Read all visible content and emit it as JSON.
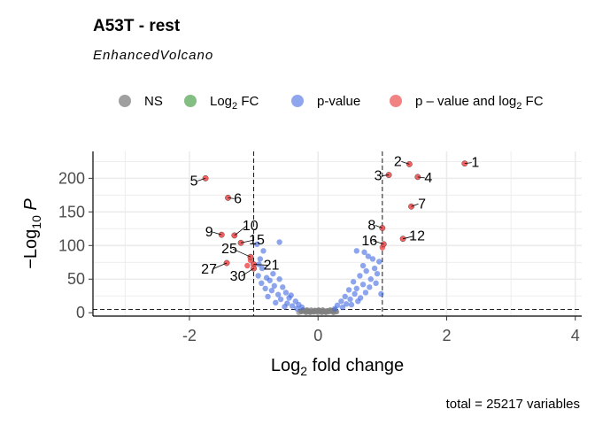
{
  "chart_data": {
    "type": "scatter",
    "title": "A53T - rest",
    "subtitle": "EnhancedVolcano",
    "xlabel": "Log2 fold change",
    "ylabel": "−Log10 P",
    "caption": "total = 25217 variables",
    "xlim": [
      -3.5,
      4.1
    ],
    "ylim": [
      -5,
      240
    ],
    "x_ticks": [
      -2,
      0,
      2,
      4
    ],
    "x_tick_labels": [
      "-2",
      "0",
      "2",
      "4"
    ],
    "y_ticks": [
      0,
      50,
      100,
      150,
      200
    ],
    "y_tick_labels": [
      "0",
      "50",
      "100",
      "150",
      "200"
    ],
    "fc_cutoff": 1,
    "p_cutoff_log10": 5,
    "grid": true,
    "legend_position": "top",
    "legend": [
      {
        "label": "NS",
        "base": "NS",
        "sub": "",
        "rest": "",
        "color": "#808080"
      },
      {
        "label": "Log2 FC",
        "base": "Log",
        "sub": "2",
        "rest": " FC",
        "color": "#5aa85a"
      },
      {
        "label": "p-value",
        "base": "p-value",
        "sub": "",
        "rest": "",
        "color": "#6a88e8"
      },
      {
        "label": "p – value and log2 FC",
        "base": "p – value and log",
        "sub": "2",
        "rest": " FC",
        "color": "#ee5a5a"
      }
    ],
    "colors": {
      "ns": "#808080",
      "fc": "#5aa85a",
      "p": "#4169e1",
      "both": "#f05050"
    },
    "labeled_points": [
      {
        "label": "1",
        "x": 2.28,
        "y": 222
      },
      {
        "label": "2",
        "x": 1.42,
        "y": 221
      },
      {
        "label": "3",
        "x": 1.1,
        "y": 205
      },
      {
        "label": "4",
        "x": 1.55,
        "y": 202
      },
      {
        "label": "5",
        "x": -1.75,
        "y": 200
      },
      {
        "label": "6",
        "x": -1.4,
        "y": 171
      },
      {
        "label": "7",
        "x": 1.45,
        "y": 158
      },
      {
        "label": "8",
        "x": 1.0,
        "y": 126
      },
      {
        "label": "9",
        "x": -1.5,
        "y": 116
      },
      {
        "label": "10",
        "x": -1.3,
        "y": 115
      },
      {
        "label": "12",
        "x": 1.32,
        "y": 110
      },
      {
        "label": "15",
        "x": -1.2,
        "y": 104
      },
      {
        "label": "16",
        "x": 1.02,
        "y": 102
      },
      {
        "label": "21",
        "x": -1.0,
        "y": 72
      },
      {
        "label": "25",
        "x": -1.05,
        "y": 83
      },
      {
        "label": "27",
        "x": -1.42,
        "y": 74
      },
      {
        "label": "30",
        "x": -1.0,
        "y": 66
      }
    ],
    "significant_unlabeled": [
      {
        "x": -1.05,
        "y": 78
      },
      {
        "x": -1.1,
        "y": 70
      },
      {
        "x": 1.0,
        "y": 97
      }
    ],
    "pvalue_points": [
      {
        "x": -0.6,
        "y": 105
      },
      {
        "x": -0.95,
        "y": 102
      },
      {
        "x": -0.85,
        "y": 92
      },
      {
        "x": -0.9,
        "y": 80
      },
      {
        "x": -0.92,
        "y": 72
      },
      {
        "x": -0.87,
        "y": 66
      },
      {
        "x": -0.93,
        "y": 55
      },
      {
        "x": -0.8,
        "y": 52
      },
      {
        "x": -0.75,
        "y": 48
      },
      {
        "x": -0.6,
        "y": 50
      },
      {
        "x": -0.68,
        "y": 40
      },
      {
        "x": -0.55,
        "y": 38
      },
      {
        "x": -0.72,
        "y": 33
      },
      {
        "x": -0.5,
        "y": 30
      },
      {
        "x": -0.62,
        "y": 27
      },
      {
        "x": -0.45,
        "y": 22
      },
      {
        "x": -0.58,
        "y": 20
      },
      {
        "x": -0.35,
        "y": 17
      },
      {
        "x": -0.48,
        "y": 14
      },
      {
        "x": -0.3,
        "y": 12
      },
      {
        "x": -0.4,
        "y": 10
      },
      {
        "x": -0.25,
        "y": 8
      },
      {
        "x": -0.82,
        "y": 36
      },
      {
        "x": -0.78,
        "y": 24
      },
      {
        "x": -0.66,
        "y": 15
      },
      {
        "x": -0.52,
        "y": 9
      },
      {
        "x": -0.88,
        "y": 44
      },
      {
        "x": -0.42,
        "y": 26
      },
      {
        "x": -0.7,
        "y": 58
      },
      {
        "x": -0.33,
        "y": 6
      },
      {
        "x": 0.6,
        "y": 92
      },
      {
        "x": 0.72,
        "y": 90
      },
      {
        "x": 0.78,
        "y": 84
      },
      {
        "x": 0.85,
        "y": 80
      },
      {
        "x": 0.95,
        "y": 76
      },
      {
        "x": 0.88,
        "y": 66
      },
      {
        "x": 0.7,
        "y": 70
      },
      {
        "x": 0.75,
        "y": 62
      },
      {
        "x": 0.92,
        "y": 58
      },
      {
        "x": 0.65,
        "y": 55
      },
      {
        "x": 0.82,
        "y": 50
      },
      {
        "x": 0.55,
        "y": 46
      },
      {
        "x": 0.7,
        "y": 42
      },
      {
        "x": 0.6,
        "y": 36
      },
      {
        "x": 0.48,
        "y": 34
      },
      {
        "x": 0.57,
        "y": 28
      },
      {
        "x": 0.42,
        "y": 24
      },
      {
        "x": 0.5,
        "y": 20
      },
      {
        "x": 0.36,
        "y": 17
      },
      {
        "x": 0.44,
        "y": 13
      },
      {
        "x": 0.3,
        "y": 11
      },
      {
        "x": 0.38,
        "y": 8
      },
      {
        "x": 0.26,
        "y": 6
      },
      {
        "x": 0.98,
        "y": 28
      },
      {
        "x": 0.9,
        "y": 44
      },
      {
        "x": 0.8,
        "y": 38
      },
      {
        "x": 0.66,
        "y": 22
      },
      {
        "x": 0.52,
        "y": 12
      },
      {
        "x": 0.74,
        "y": 30
      },
      {
        "x": 0.62,
        "y": 17
      }
    ]
  }
}
